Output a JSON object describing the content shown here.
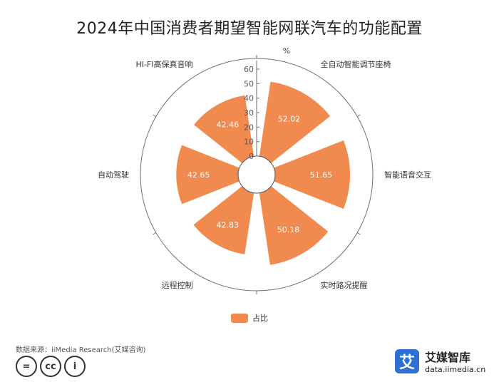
{
  "chart_data": {
    "type": "polar-bar",
    "title": "2024年中国消费者期望智能网联汽车的功能配置",
    "radial_unit": "%",
    "radial_range": [
      0,
      60
    ],
    "radial_ticks": [
      "0",
      "10",
      "20",
      "30",
      "40",
      "50",
      "60"
    ],
    "categories": [
      "全自动智能调节座椅",
      "智能语音交互",
      "实时路况提醒",
      "远程控制",
      "自动驾驶",
      "HI-FI高保真音响"
    ],
    "series": [
      {
        "name": "占比",
        "values": [
          52.02,
          51.65,
          50.18,
          42.83,
          42.65,
          42.46
        ]
      }
    ],
    "value_labels": [
      "52.02",
      "51.65",
      "50.18",
      "42.83",
      "42.65",
      "42.46"
    ],
    "legend_position": "bottom",
    "bar_color": "#f08a4f"
  },
  "source_text": "数据来源：iiMedia Research(艾媒咨询)",
  "license": {
    "icons": [
      "=",
      "cc",
      "i"
    ]
  },
  "brand": {
    "logo_char": "艾",
    "name": "艾媒智库",
    "url": "data.iimedia.cn"
  }
}
